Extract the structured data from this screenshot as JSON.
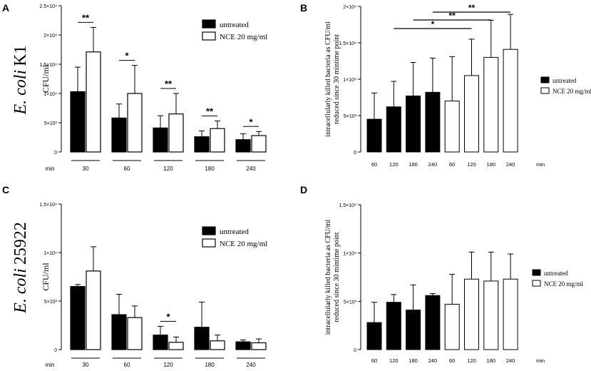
{
  "chart_data": [
    {
      "panel": "A",
      "type": "bar",
      "species_label": "E. coli",
      "strain_label": "K1",
      "ylabel": "CFU/ml",
      "xlabel": "min",
      "ylim": [
        0,
        25000
      ],
      "yticks": [
        "0",
        "5×10³",
        "1×10⁴",
        "1.5×10⁴",
        "2×10⁴",
        "2.5×10⁴"
      ],
      "categories": [
        "30",
        "60",
        "120",
        "180",
        "240"
      ],
      "series": [
        {
          "name": "untreated",
          "fill": "#000000",
          "values": [
            10300,
            5800,
            4100,
            2600,
            2100
          ],
          "errors": [
            4200,
            2400,
            2100,
            1000,
            1000
          ]
        },
        {
          "name": "NCE 20 mg/ml",
          "fill": "#ffffff",
          "values": [
            17100,
            10000,
            6500,
            4000,
            2800
          ],
          "errors": [
            4200,
            4800,
            3500,
            1300,
            700
          ]
        }
      ],
      "significance": [
        "**",
        "*",
        "**",
        "**",
        "*"
      ]
    },
    {
      "panel": "B",
      "type": "bar",
      "ylabel_lines": [
        "intracellularly killed bacteria as CFU/ml",
        "reduced since 30 mintime point"
      ],
      "xlabel": "min",
      "ylim": [
        0,
        20000
      ],
      "yticks": [
        "0",
        "5×10³",
        "1×10⁴",
        "1.5×10⁴",
        "2×10⁴"
      ],
      "categories": [
        "60",
        "120",
        "180",
        "240",
        "60",
        "120",
        "180",
        "240"
      ],
      "groups": [
        "untreated",
        "untreated",
        "untreated",
        "untreated",
        "NCE 20 mg/ml",
        "NCE 20 mg/ml",
        "NCE 20 mg/ml",
        "NCE 20 mg/ml"
      ],
      "values": [
        4500,
        6200,
        7700,
        8200,
        7000,
        10500,
        13000,
        14100
      ],
      "errors": [
        3600,
        3500,
        4600,
        4700,
        6100,
        5000,
        5100,
        4800
      ],
      "legend": [
        "untreated",
        "NCE 20 mg/ml"
      ],
      "brackets": [
        {
          "from": 1,
          "to": 5,
          "label": "*"
        },
        {
          "from": 2,
          "to": 6,
          "label": "**"
        },
        {
          "from": 3,
          "to": 7,
          "label": "**"
        }
      ]
    },
    {
      "panel": "C",
      "type": "bar",
      "species_label": "E. coli",
      "strain_label": "25922",
      "ylabel": "CFU/ml",
      "xlabel": "min",
      "ylim": [
        0,
        15000
      ],
      "yticks": [
        "0",
        "5×10³",
        "1×10⁴",
        "1.5×10⁴"
      ],
      "categories": [
        "30",
        "60",
        "120",
        "180",
        "240"
      ],
      "series": [
        {
          "name": "untreated",
          "fill": "#000000",
          "values": [
            6500,
            3600,
            1500,
            2300,
            800
          ],
          "errors": [
            200,
            2100,
            900,
            2600,
            200
          ]
        },
        {
          "name": "NCE 20 mg/ml",
          "fill": "#ffffff",
          "values": [
            8100,
            3300,
            750,
            900,
            700
          ],
          "errors": [
            2500,
            1200,
            550,
            600,
            400
          ]
        }
      ],
      "significance": [
        "",
        "",
        "*",
        "",
        ""
      ]
    },
    {
      "panel": "D",
      "type": "bar",
      "ylabel_lines": [
        "intracellularly killed bacteria as CFU/ml",
        "reduced since 30 mintime point"
      ],
      "xlabel": "min",
      "ylim": [
        0,
        15000
      ],
      "yticks": [
        "0",
        "5×10³",
        "1×10⁴",
        "1.5×10⁴"
      ],
      "categories": [
        "60",
        "120",
        "180",
        "240",
        "60",
        "120",
        "180",
        "240"
      ],
      "groups": [
        "untreated",
        "untreated",
        "untreated",
        "untreated",
        "NCE 20 mg/ml",
        "NCE 20 mg/ml",
        "NCE 20 mg/ml",
        "NCE 20 mg/ml"
      ],
      "values": [
        2800,
        4900,
        4100,
        5600,
        4700,
        7300,
        7100,
        7300
      ],
      "errors": [
        2100,
        800,
        2600,
        200,
        3100,
        2800,
        3000,
        2600
      ],
      "legend": [
        "untreated",
        "NCE 20 mg/ml"
      ],
      "brackets": []
    }
  ]
}
